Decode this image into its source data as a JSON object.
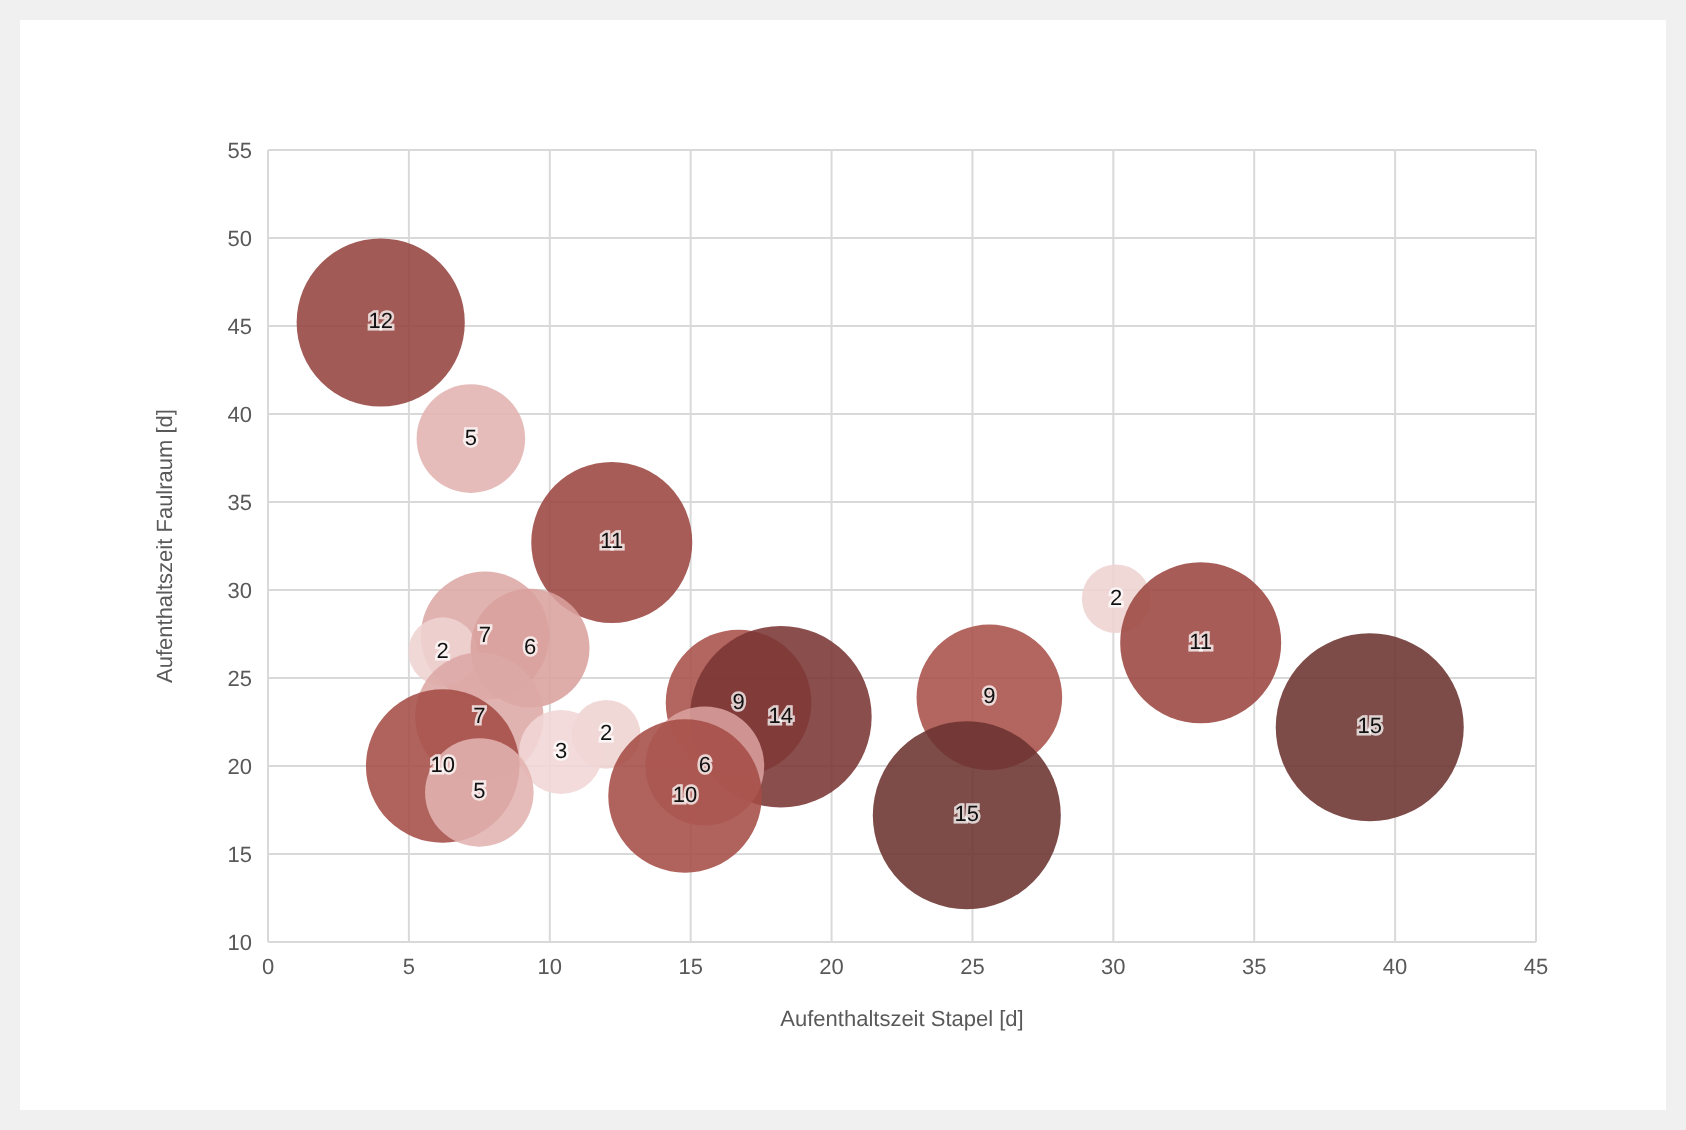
{
  "chart_data": {
    "type": "bubble",
    "xlabel": "Aufenthaltszeit Stapel [d]",
    "ylabel": "Aufenthaltszeit Faulraum [d]",
    "x": [
      4,
      7.2,
      12.2,
      30.1,
      33.1,
      7.7,
      6.2,
      9.3,
      16.7,
      18.2,
      25.6,
      39.1,
      7.5,
      12,
      10.4,
      6.2,
      15.5,
      7.5,
      14.8,
      24.8
    ],
    "values": [
      45.2,
      38.6,
      32.7,
      29.5,
      27,
      27.4,
      26.5,
      26.7,
      23.6,
      22.8,
      23.9,
      22.2,
      22.8,
      21.8,
      20.8,
      20,
      20,
      18.5,
      18.3,
      17.2
    ],
    "sizes": [
      12,
      5,
      11,
      2,
      11,
      7,
      2,
      6,
      9,
      14,
      9,
      15,
      7,
      2,
      3,
      10,
      6,
      5,
      10,
      15
    ],
    "value_labels": [
      "12",
      "5",
      "11",
      "2",
      "11",
      "7",
      "2",
      "6",
      "9",
      "14",
      "9",
      "15",
      "7",
      "2",
      "3",
      "10",
      "6",
      "5",
      "10",
      "15"
    ],
    "colors": [
      "#94433d",
      "#e2b3b1",
      "#9b4540",
      "#eed3d2",
      "#9b4540",
      "#dca9a6",
      "#eed3d2",
      "#d9a09d",
      "#a9504a",
      "#7a3533",
      "#a9504a",
      "#6b3330",
      "#dca9a6",
      "#eed3d2",
      "#f0d6d5",
      "#a54c46",
      "#d9a09d",
      "#e2b3b1",
      "#a54c46",
      "#6b3330"
    ],
    "xlim": [
      0,
      45
    ],
    "xticks": [
      0,
      5,
      10,
      15,
      20,
      25,
      30,
      35,
      40,
      45
    ],
    "ylim": [
      10,
      55
    ],
    "yticks": [
      10,
      15,
      20,
      25,
      30,
      35,
      40,
      45,
      50,
      55
    ],
    "grid": true,
    "legend": false
  }
}
